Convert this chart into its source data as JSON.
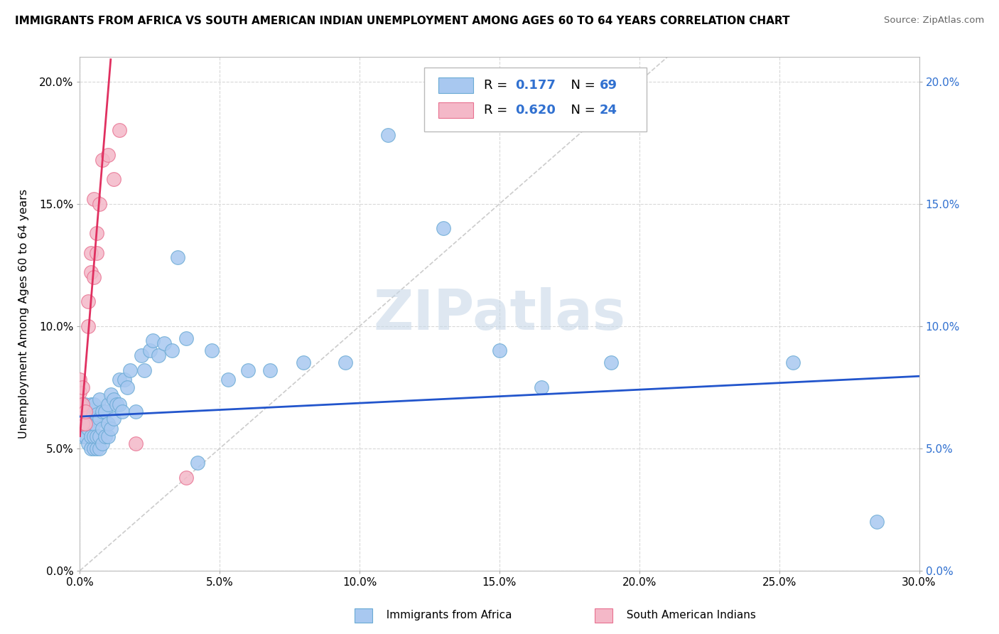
{
  "title": "IMMIGRANTS FROM AFRICA VS SOUTH AMERICAN INDIAN UNEMPLOYMENT AMONG AGES 60 TO 64 YEARS CORRELATION CHART",
  "source": "Source: ZipAtlas.com",
  "ylabel": "Unemployment Among Ages 60 to 64 years",
  "xlim": [
    0,
    0.3
  ],
  "ylim": [
    0.0,
    0.21
  ],
  "africa_color": "#a8c8f0",
  "africa_edge": "#6aaad4",
  "sa_color": "#f4b8c8",
  "sa_edge": "#e87090",
  "trendline_africa_color": "#2255cc",
  "trendline_sa_color": "#e03060",
  "diagonal_color": "#cccccc",
  "grid_color": "#d8d8d8",
  "africa_points_x": [
    0.0,
    0.0,
    0.001,
    0.001,
    0.001,
    0.002,
    0.002,
    0.002,
    0.003,
    0.003,
    0.003,
    0.004,
    0.004,
    0.004,
    0.004,
    0.005,
    0.005,
    0.005,
    0.005,
    0.006,
    0.006,
    0.006,
    0.007,
    0.007,
    0.007,
    0.007,
    0.008,
    0.008,
    0.008,
    0.009,
    0.009,
    0.01,
    0.01,
    0.01,
    0.011,
    0.011,
    0.012,
    0.012,
    0.013,
    0.014,
    0.014,
    0.015,
    0.016,
    0.017,
    0.018,
    0.02,
    0.022,
    0.023,
    0.025,
    0.026,
    0.028,
    0.03,
    0.033,
    0.035,
    0.038,
    0.042,
    0.047,
    0.053,
    0.06,
    0.068,
    0.08,
    0.095,
    0.11,
    0.13,
    0.15,
    0.165,
    0.19,
    0.255,
    0.285
  ],
  "africa_points_y": [
    0.065,
    0.06,
    0.055,
    0.06,
    0.068,
    0.055,
    0.062,
    0.068,
    0.052,
    0.058,
    0.064,
    0.05,
    0.055,
    0.062,
    0.068,
    0.05,
    0.055,
    0.06,
    0.068,
    0.05,
    0.055,
    0.064,
    0.05,
    0.055,
    0.062,
    0.07,
    0.052,
    0.058,
    0.065,
    0.055,
    0.065,
    0.055,
    0.06,
    0.068,
    0.058,
    0.072,
    0.062,
    0.07,
    0.068,
    0.078,
    0.068,
    0.065,
    0.078,
    0.075,
    0.082,
    0.065,
    0.088,
    0.082,
    0.09,
    0.094,
    0.088,
    0.093,
    0.09,
    0.128,
    0.095,
    0.044,
    0.09,
    0.078,
    0.082,
    0.082,
    0.085,
    0.085,
    0.178,
    0.14,
    0.09,
    0.075,
    0.085,
    0.085,
    0.02
  ],
  "sa_points_x": [
    0.0,
    0.0,
    0.0,
    0.0,
    0.001,
    0.001,
    0.001,
    0.002,
    0.002,
    0.003,
    0.003,
    0.004,
    0.004,
    0.005,
    0.005,
    0.006,
    0.006,
    0.007,
    0.008,
    0.01,
    0.012,
    0.014,
    0.02,
    0.038
  ],
  "sa_points_y": [
    0.065,
    0.068,
    0.073,
    0.078,
    0.06,
    0.068,
    0.075,
    0.06,
    0.065,
    0.1,
    0.11,
    0.122,
    0.13,
    0.12,
    0.152,
    0.13,
    0.138,
    0.15,
    0.168,
    0.17,
    0.16,
    0.18,
    0.052,
    0.038
  ],
  "watermark": "ZIPatlas",
  "watermark_color": "#c8d8e8",
  "right_axis_color": "#3070d0",
  "legend_r_color": "#3070d0",
  "legend_n_color": "#3070d0"
}
